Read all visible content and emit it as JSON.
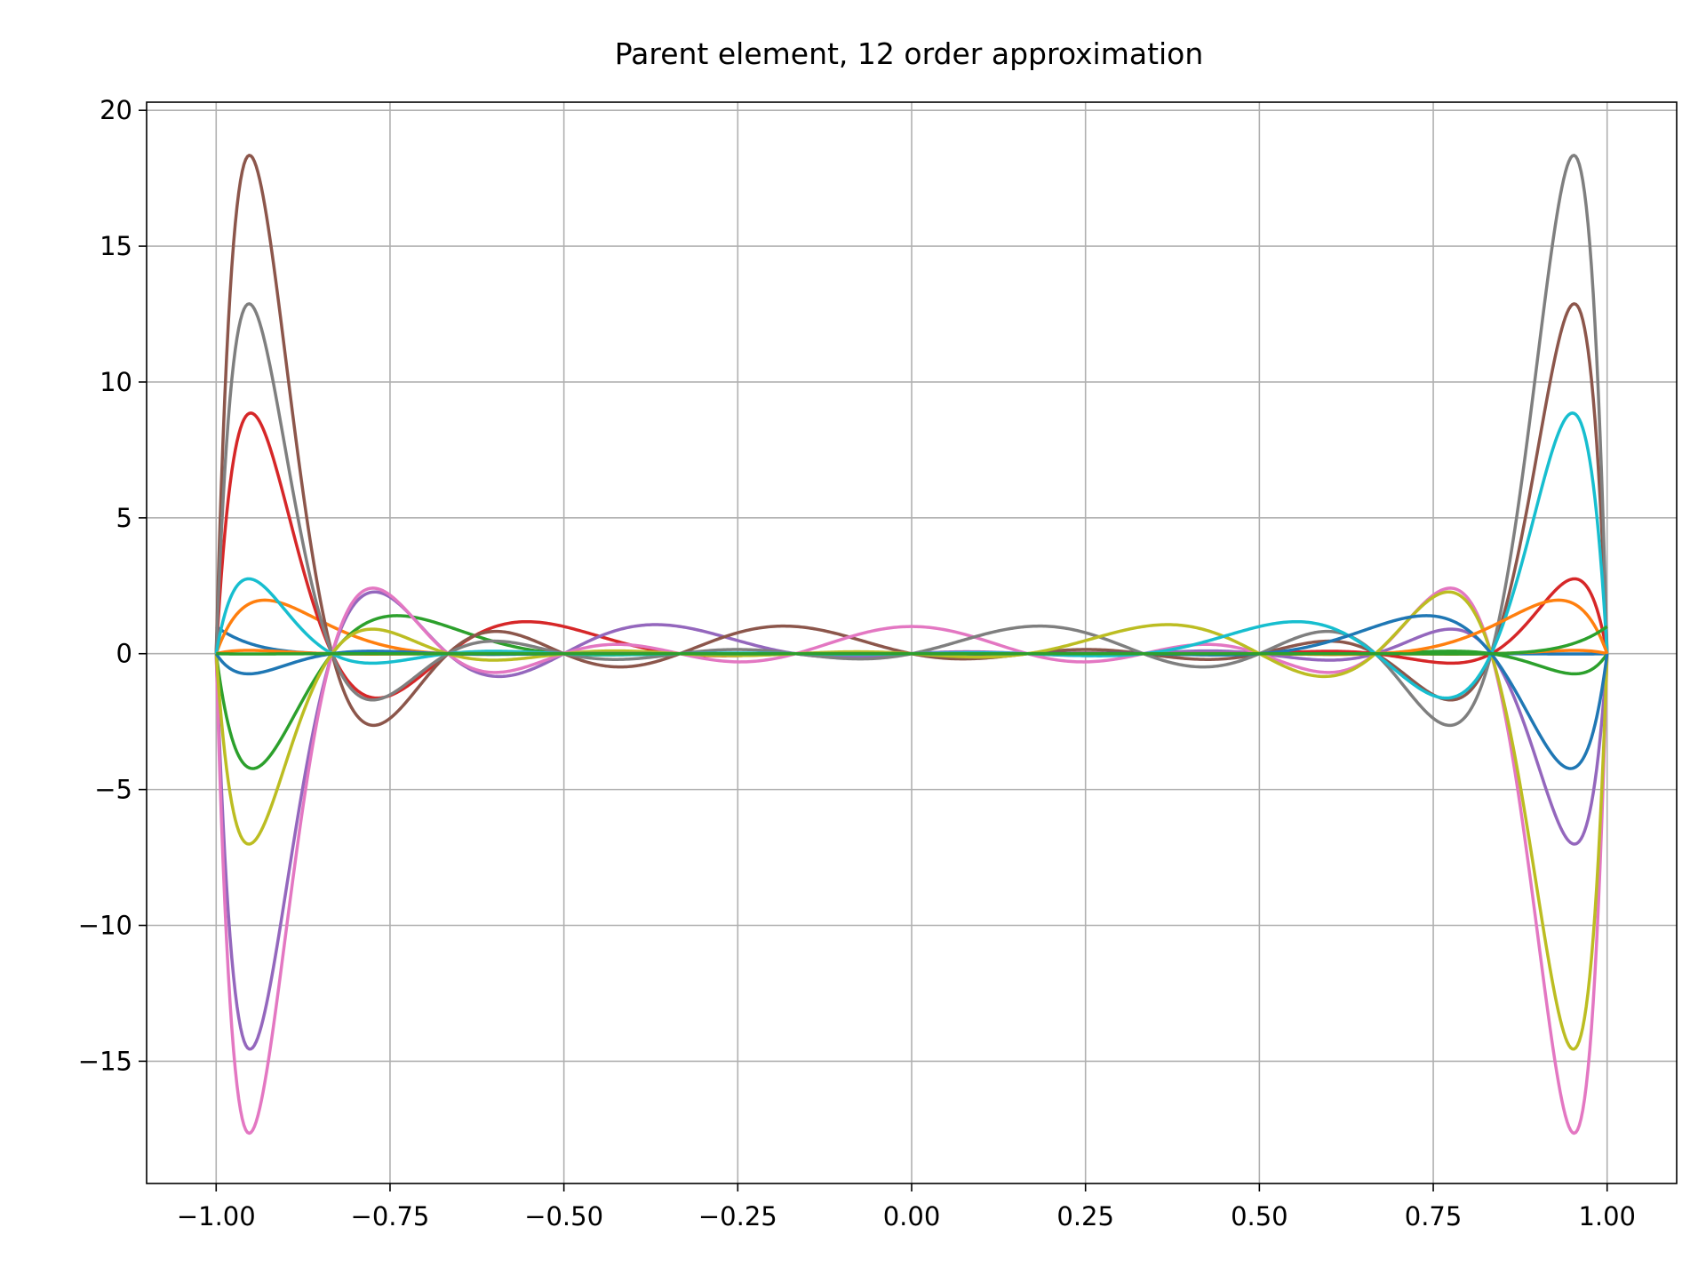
{
  "chart_data": {
    "type": "line",
    "title": "Parent element, 12 order approximation",
    "xlabel": "",
    "ylabel": "",
    "xlim": [
      -1.1,
      1.1
    ],
    "ylim": [
      -19.5,
      20.3
    ],
    "grid": true,
    "legend": "none",
    "x_ticks": [
      -1.0,
      -0.75,
      -0.5,
      -0.25,
      0.0,
      0.25,
      0.5,
      0.75,
      1.0
    ],
    "x_tick_labels": [
      "−1.00",
      "−0.75",
      "−0.50",
      "−0.25",
      "0.00",
      "0.25",
      "0.50",
      "0.75",
      "1.00"
    ],
    "y_ticks": [
      -15,
      -10,
      -5,
      0,
      5,
      10,
      15,
      20
    ],
    "y_tick_labels": [
      "−15",
      "−10",
      "−5",
      "0",
      "5",
      "10",
      "15",
      "20"
    ],
    "x_domain": [
      -1.0,
      1.0
    ],
    "nodes": [
      -1.0,
      -0.8333,
      -0.6667,
      -0.5,
      -0.3333,
      -0.1667,
      0.0,
      0.1667,
      0.3333,
      0.5,
      0.6667,
      0.8333,
      1.0
    ],
    "series": [
      {
        "node_index": 0,
        "color": "#1f77b4"
      },
      {
        "node_index": 1,
        "color": "#ff7f0e"
      },
      {
        "node_index": 2,
        "color": "#2ca02c"
      },
      {
        "node_index": 3,
        "color": "#d62728"
      },
      {
        "node_index": 4,
        "color": "#9467bd"
      },
      {
        "node_index": 5,
        "color": "#8c564b"
      },
      {
        "node_index": 6,
        "color": "#e377c2"
      },
      {
        "node_index": 7,
        "color": "#7f7f7f"
      },
      {
        "node_index": 8,
        "color": "#bcbd22"
      },
      {
        "node_index": 9,
        "color": "#17becf"
      },
      {
        "node_index": 10,
        "color": "#1f77b4"
      },
      {
        "node_index": 11,
        "color": "#ff7f0e"
      },
      {
        "node_index": 12,
        "color": "#2ca02c"
      }
    ]
  }
}
